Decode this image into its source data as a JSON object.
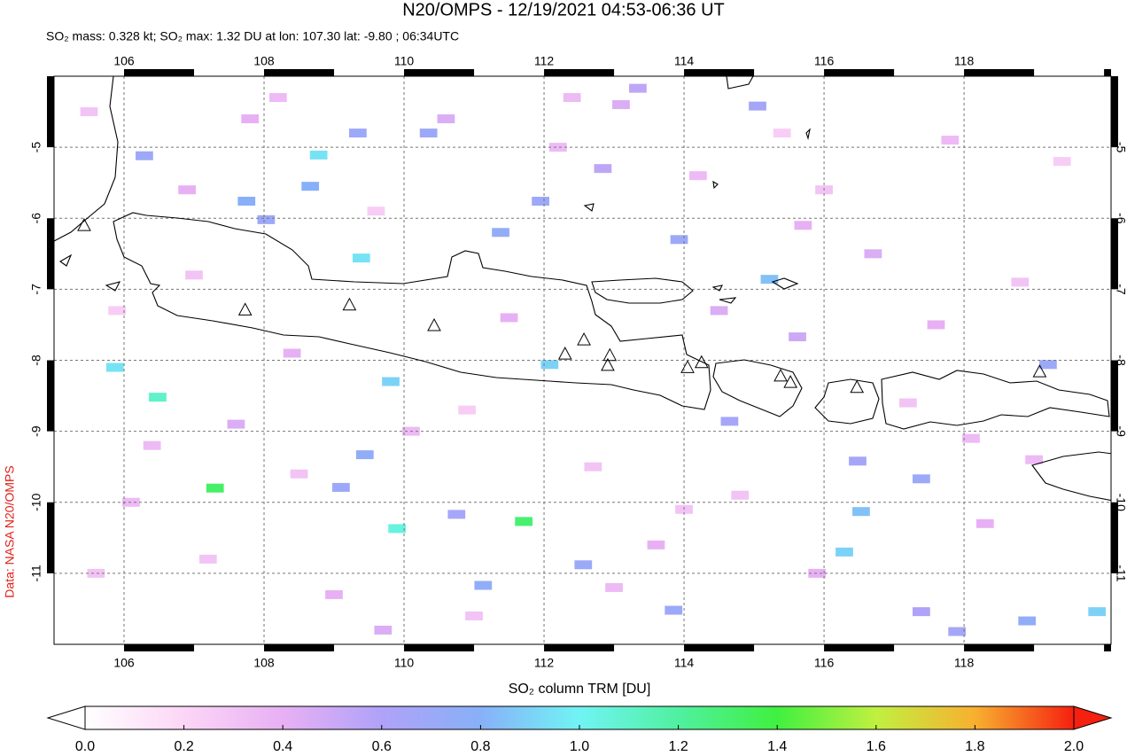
{
  "chart_data": {
    "type": "map",
    "title": "N20/OMPS - 12/19/2021 04:53-06:36 UT",
    "subtitle": "SO₂ mass: 0.328 kt; SO₂ max: 1.32 DU at lon: 107.30 lat: -9.80 ; 06:34UTC",
    "side_label": "Data: NASA N20/OMPS",
    "xlim": [
      105,
      120.1
    ],
    "ylim": [
      -12,
      -4
    ],
    "xticks": [
      106,
      108,
      110,
      112,
      114,
      116,
      118
    ],
    "yticks": [
      -5,
      -6,
      -7,
      -8,
      -9,
      -10,
      -11
    ],
    "grid": true,
    "pixels": {
      "lon": [
        107.3,
        111.71,
        109.9,
        105.87,
        106.48,
        108.78,
        109.39,
        109.81,
        112.08,
        115.22,
        116.29,
        116.53,
        119.9,
        109.34,
        110.35,
        113.93,
        112.56,
        119.2,
        117.39,
        113.85,
        111.38,
        118.9,
        110.75,
        115.05,
        114.65,
        108.03,
        106.29,
        108.66,
        107.75,
        111.95,
        116.48,
        117.39,
        109.44,
        109.1,
        111.13,
        117.9,
        113.34,
        112.84,
        115.62,
        105.5,
        105.9,
        106.4,
        106.9,
        107.2,
        107.6,
        108.2,
        108.5,
        109.0,
        109.6,
        110.1,
        110.6,
        111.0,
        111.5,
        112.2,
        112.7,
        113.1,
        113.6,
        114.2,
        114.8,
        115.4,
        115.9,
        116.7,
        117.2,
        117.8,
        118.3,
        118.8,
        119.4,
        106.1,
        107.0,
        108.4,
        110.9,
        113.0,
        114.5,
        116.0,
        117.6,
        119.0,
        105.6,
        107.8,
        109.7,
        112.4,
        114.0,
        115.7,
        118.1
      ],
      "lat": [
        -9.8,
        -10.27,
        -10.37,
        -8.1,
        -8.52,
        -5.11,
        -6.56,
        -8.3,
        -8.06,
        -6.86,
        -10.7,
        -10.13,
        -11.54,
        -4.8,
        -4.8,
        -6.3,
        -10.88,
        -8.06,
        -9.67,
        -11.52,
        -6.2,
        -11.67,
        -10.17,
        -4.42,
        -8.86,
        -6.02,
        -5.12,
        -5.55,
        -5.76,
        -5.76,
        -9.42,
        -11.54,
        -9.33,
        -9.79,
        -11.17,
        -11.82,
        -4.17,
        -5.3,
        -7.67,
        -4.5,
        -7.3,
        -9.2,
        -5.6,
        -10.8,
        -8.9,
        -4.3,
        -9.6,
        -11.3,
        -5.9,
        -9.0,
        -4.6,
        -11.6,
        -7.4,
        -5.0,
        -9.5,
        -4.4,
        -10.6,
        -5.4,
        -9.9,
        -4.8,
        -11.0,
        -6.5,
        -8.6,
        -4.9,
        -10.3,
        -6.9,
        -5.2,
        -10.0,
        -6.8,
        -7.9,
        -8.7,
        -11.2,
        -7.3,
        -5.6,
        -7.5,
        -9.4,
        -11.0,
        -4.6,
        -11.8,
        -4.3,
        -10.1,
        -6.1,
        -9.1
      ],
      "values": [
        1.32,
        1.3,
        1.05,
        0.95,
        1.1,
        0.95,
        0.95,
        0.9,
        0.9,
        0.85,
        0.9,
        0.85,
        0.9,
        0.7,
        0.7,
        0.7,
        0.7,
        0.7,
        0.7,
        0.7,
        0.75,
        0.75,
        0.65,
        0.65,
        0.65,
        0.7,
        0.7,
        0.8,
        0.8,
        0.7,
        0.65,
        0.6,
        0.75,
        0.7,
        0.75,
        0.65,
        0.55,
        0.55,
        0.5,
        0.3,
        0.25,
        0.35,
        0.4,
        0.3,
        0.45,
        0.35,
        0.3,
        0.4,
        0.25,
        0.35,
        0.45,
        0.3,
        0.4,
        0.35,
        0.3,
        0.45,
        0.4,
        0.35,
        0.3,
        0.25,
        0.4,
        0.45,
        0.3,
        0.35,
        0.4,
        0.3,
        0.25,
        0.35,
        0.3,
        0.4,
        0.25,
        0.35,
        0.45,
        0.3,
        0.4,
        0.35,
        0.3,
        0.4,
        0.45,
        0.35,
        0.3,
        0.4,
        0.35
      ]
    },
    "volcanoes": {
      "lon": [
        105.43,
        107.73,
        109.22,
        110.43,
        112.3,
        112.57,
        112.94,
        112.91,
        114.05,
        114.25,
        115.38,
        115.52,
        116.47,
        119.08
      ],
      "lat": [
        -6.11,
        -7.3,
        -7.23,
        -7.52,
        -7.92,
        -7.72,
        -7.94,
        -8.08,
        -8.11,
        -8.04,
        -8.23,
        -8.32,
        -8.39,
        -8.17
      ]
    },
    "colorbar": {
      "label": "SO₂ column TRM [DU]",
      "clim": [
        0,
        2
      ],
      "colormap": [
        "#ffffff",
        "#fcd6f6",
        "#e8b0f4",
        "#b0a2f8",
        "#88b0f8",
        "#70f4f4",
        "#50f0a0",
        "#40f040",
        "#c0f040",
        "#f8b030",
        "#f52010"
      ],
      "ticks": [
        {
          "value": 0,
          "label": "0.0"
        },
        0.2,
        0.4,
        0.6,
        0.8,
        {
          "value": 1,
          "label": "1.0"
        },
        1.2,
        1.4,
        1.6,
        1.8,
        {
          "value": 2,
          "label": "2.0"
        }
      ]
    }
  }
}
